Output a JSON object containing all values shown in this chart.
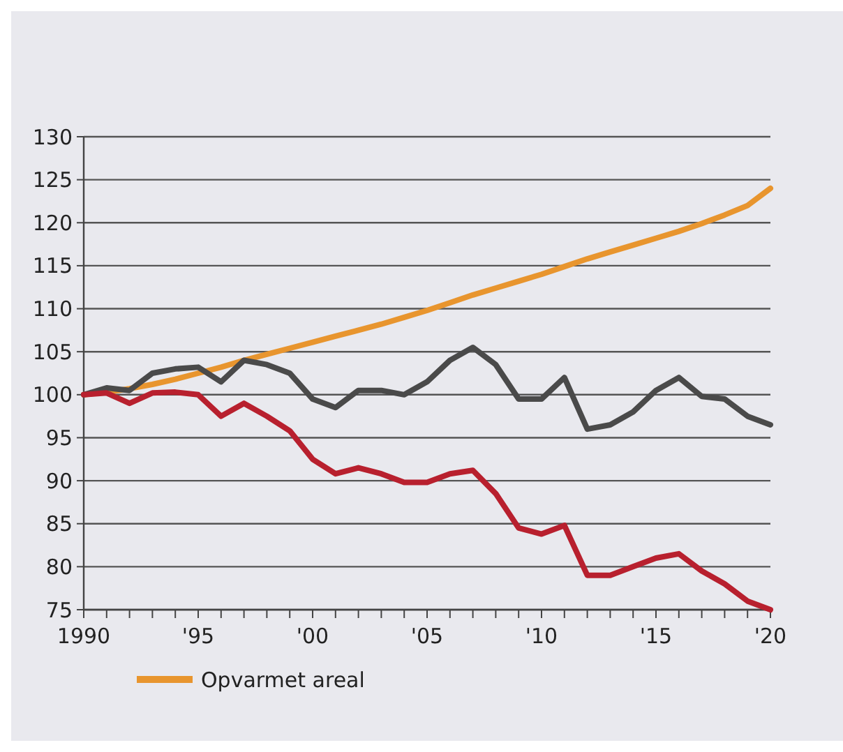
{
  "chart_data": {
    "type": "line",
    "x": [
      1990,
      1991,
      1992,
      1993,
      1994,
      1995,
      1996,
      1997,
      1998,
      1999,
      2000,
      2001,
      2002,
      2003,
      2004,
      2005,
      2006,
      2007,
      2008,
      2009,
      2010,
      2011,
      2012,
      2013,
      2014,
      2015,
      2016,
      2017,
      2018,
      2019,
      2020
    ],
    "series": [
      {
        "name": "Opvarmet areal",
        "color": "#e8952e",
        "values": [
          100,
          100.3,
          100.7,
          101.2,
          101.8,
          102.5,
          103.2,
          104,
          104.7,
          105.4,
          106.1,
          106.8,
          107.5,
          108.2,
          109,
          109.8,
          110.7,
          111.6,
          112.4,
          113.2,
          114,
          114.9,
          115.8,
          116.6,
          117.4,
          118.2,
          119,
          119.9,
          120.9,
          122,
          124
        ]
      },
      {
        "color": "#4a4a4a",
        "values": [
          100,
          100.8,
          100.5,
          102.5,
          103,
          103.2,
          101.5,
          104,
          103.5,
          102.5,
          99.5,
          98.5,
          100.5,
          100.5,
          100,
          101.5,
          104,
          105.5,
          103.5,
          99.5,
          99.5,
          102,
          96,
          96.5,
          98,
          100.5,
          102,
          99.8,
          99.5,
          97.5,
          96.5
        ]
      },
      {
        "color": "#b8202e",
        "values": [
          100,
          100.2,
          99,
          100.2,
          100.3,
          100,
          97.5,
          99,
          97.5,
          95.8,
          92.5,
          90.8,
          91.5,
          90.8,
          89.8,
          89.8,
          90.8,
          91.2,
          88.5,
          84.5,
          83.8,
          84.8,
          79,
          79,
          80,
          81,
          81.5,
          79.5,
          78,
          76,
          75
        ]
      }
    ],
    "xlim": [
      1990,
      2020
    ],
    "xticks": [
      {
        "value": 1990,
        "label": "1990"
      },
      {
        "value": 1991,
        "label": null
      },
      {
        "value": 1992,
        "label": null
      },
      {
        "value": 1993,
        "label": null
      },
      {
        "value": 1994,
        "label": null
      },
      {
        "value": 1995,
        "label": "'95"
      },
      {
        "value": 1996,
        "label": null
      },
      {
        "value": 1997,
        "label": null
      },
      {
        "value": 1998,
        "label": null
      },
      {
        "value": 1999,
        "label": null
      },
      {
        "value": 2000,
        "label": "'00"
      },
      {
        "value": 2001,
        "label": null
      },
      {
        "value": 2002,
        "label": null
      },
      {
        "value": 2003,
        "label": null
      },
      {
        "value": 2004,
        "label": null
      },
      {
        "value": 2005,
        "label": "'05"
      },
      {
        "value": 2006,
        "label": null
      },
      {
        "value": 2007,
        "label": null
      },
      {
        "value": 2008,
        "label": null
      },
      {
        "value": 2009,
        "label": null
      },
      {
        "value": 2010,
        "label": "'10"
      },
      {
        "value": 2011,
        "label": null
      },
      {
        "value": 2012,
        "label": null
      },
      {
        "value": 2013,
        "label": null
      },
      {
        "value": 2014,
        "label": null
      },
      {
        "value": 2015,
        "label": "'15"
      },
      {
        "value": 2016,
        "label": null
      },
      {
        "value": 2017,
        "label": null
      },
      {
        "value": 2018,
        "label": null
      },
      {
        "value": 2019,
        "label": null
      },
      {
        "value": 2020,
        "label": "'20"
      }
    ],
    "ylim": [
      75,
      130
    ],
    "yticks": [
      75,
      80,
      85,
      90,
      95,
      100,
      105,
      110,
      115,
      120,
      125,
      130
    ],
    "grid": "y",
    "legend": "bottom",
    "marker": "none",
    "line_style": "solid"
  }
}
